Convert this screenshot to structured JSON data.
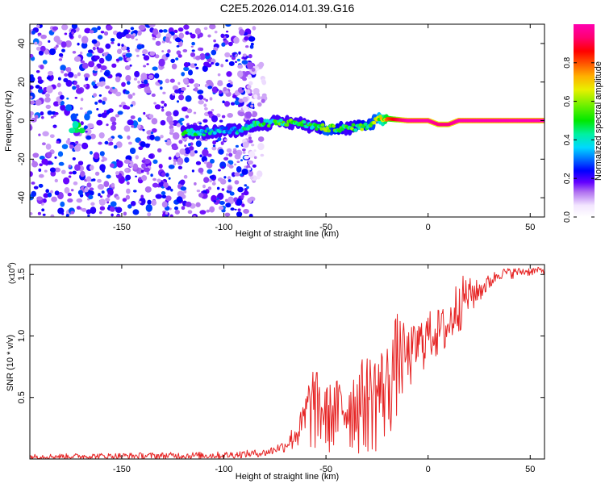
{
  "title": "C2E5.2026.014.01.39.G16",
  "chart_data": [
    {
      "type": "heatmap",
      "xlabel": "Height of straight line (km)",
      "ylabel": "Frequency (Hz)",
      "xlim": [
        -195,
        57
      ],
      "ylim": [
        -50,
        50
      ],
      "x_ticks": [
        -150,
        -100,
        -50,
        0,
        50
      ],
      "y_ticks": [
        -40,
        -20,
        0,
        20,
        40
      ],
      "colorbar": {
        "label": "Normalized spectral amplitude",
        "range": [
          0.0,
          1.0
        ],
        "ticks": [
          0.0,
          0.2,
          0.4,
          0.6,
          0.8
        ]
      },
      "regions": [
        {
          "name": "noise",
          "x_range": [
            -195,
            -85
          ],
          "freq_range": [
            -50,
            50
          ],
          "amplitude": [
            0.1,
            0.3
          ]
        },
        {
          "name": "sparse-noise",
          "x_range": [
            -90,
            -80
          ],
          "freq_range": [
            -30,
            30
          ],
          "amplitude": [
            0.05,
            0.15
          ]
        },
        {
          "name": "isolated-blob",
          "x_range": [
            -175,
            -168
          ],
          "freq_range": [
            -6,
            -2
          ],
          "amplitude": [
            0.4,
            0.6
          ]
        }
      ],
      "signal_track": [
        {
          "x": -120,
          "f": -6,
          "amp": 0.45
        },
        {
          "x": -110,
          "f": -6,
          "amp": 0.4
        },
        {
          "x": -100,
          "f": -5,
          "amp": 0.35
        },
        {
          "x": -92,
          "f": -5,
          "amp": 0.4
        },
        {
          "x": -85,
          "f": -2,
          "amp": 0.45
        },
        {
          "x": -75,
          "f": -1,
          "amp": 0.5
        },
        {
          "x": -65,
          "f": -1,
          "amp": 0.5
        },
        {
          "x": -55,
          "f": -3,
          "amp": 0.45
        },
        {
          "x": -50,
          "f": -4,
          "amp": 0.6
        },
        {
          "x": -40,
          "f": -4,
          "amp": 0.5
        },
        {
          "x": -30,
          "f": -3,
          "amp": 0.55
        },
        {
          "x": -25,
          "f": 1,
          "amp": 0.6
        },
        {
          "x": -20,
          "f": 1,
          "amp": 0.8
        },
        {
          "x": -10,
          "f": 0,
          "amp": 1.0
        },
        {
          "x": 0,
          "f": 0,
          "amp": 1.0
        },
        {
          "x": 5,
          "f": -2,
          "amp": 0.95
        },
        {
          "x": 10,
          "f": -2,
          "amp": 0.95
        },
        {
          "x": 15,
          "f": 0,
          "amp": 1.0
        },
        {
          "x": 30,
          "f": 0,
          "amp": 1.0
        },
        {
          "x": 45,
          "f": 0,
          "amp": 1.0
        },
        {
          "x": 57,
          "f": 0,
          "amp": 1.0
        }
      ]
    },
    {
      "type": "line",
      "xlabel": "Height of straight line (km)",
      "ylabel": "SNR (10 * v/v)",
      "y_multiplier": "(x10",
      "y_multiplier_exp": "4",
      "y_multiplier_close": ")",
      "xlim": [
        -195,
        57
      ],
      "ylim": [
        0,
        1.58
      ],
      "x_ticks": [
        -150,
        -100,
        -50,
        0,
        50
      ],
      "y_ticks": [
        0.5,
        1.0,
        1.5
      ],
      "y_tick_labels": [
        "0.5",
        "1.0",
        "1.5"
      ],
      "color": "#e62424",
      "envelope": [
        {
          "x": -195,
          "min": 0.0,
          "max": 0.04
        },
        {
          "x": -100,
          "min": 0.0,
          "max": 0.06
        },
        {
          "x": -80,
          "min": 0.02,
          "max": 0.08
        },
        {
          "x": -70,
          "min": 0.05,
          "max": 0.15
        },
        {
          "x": -62,
          "min": 0.04,
          "max": 0.4
        },
        {
          "x": -57,
          "min": 0.0,
          "max": 0.78
        },
        {
          "x": -50,
          "min": 0.0,
          "max": 0.6
        },
        {
          "x": -40,
          "min": 0.0,
          "max": 0.7
        },
        {
          "x": -30,
          "min": 0.0,
          "max": 0.85
        },
        {
          "x": -25,
          "min": 0.0,
          "max": 0.9
        },
        {
          "x": -20,
          "min": 0.05,
          "max": 0.95
        },
        {
          "x": -15,
          "min": 0.3,
          "max": 1.2
        },
        {
          "x": -10,
          "min": 0.5,
          "max": 1.05
        },
        {
          "x": 0,
          "min": 0.75,
          "max": 1.2
        },
        {
          "x": 10,
          "min": 0.8,
          "max": 1.25
        },
        {
          "x": 15,
          "min": 1.0,
          "max": 1.5
        },
        {
          "x": 25,
          "min": 1.25,
          "max": 1.45
        },
        {
          "x": 35,
          "min": 1.45,
          "max": 1.55
        },
        {
          "x": 57,
          "min": 1.5,
          "max": 1.56
        }
      ]
    }
  ]
}
